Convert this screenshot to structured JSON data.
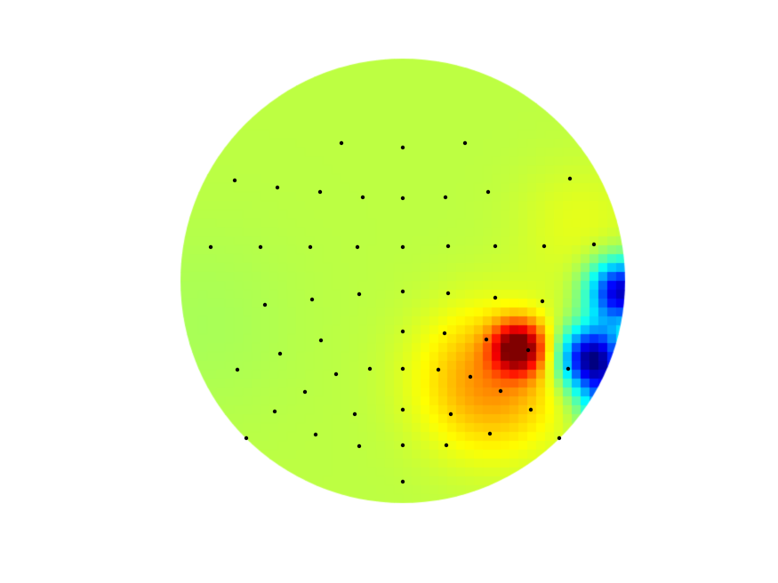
{
  "chart_data": {
    "type": "heatmap",
    "colormap": "jet",
    "head_outline": "circle",
    "background_level": 0.56,
    "electrodes": [
      [
        -0.276,
        -0.62
      ],
      [
        0.0,
        -0.6
      ],
      [
        0.28,
        -0.62
      ],
      [
        -0.756,
        -0.452
      ],
      [
        -0.564,
        -0.42
      ],
      [
        -0.372,
        -0.4
      ],
      [
        -0.18,
        -0.376
      ],
      [
        0.0,
        -0.372
      ],
      [
        0.192,
        -0.376
      ],
      [
        0.384,
        -0.4
      ],
      [
        0.752,
        -0.46
      ],
      [
        -0.864,
        -0.152
      ],
      [
        -0.64,
        -0.152
      ],
      [
        -0.416,
        -0.152
      ],
      [
        -0.204,
        -0.152
      ],
      [
        0.0,
        -0.152
      ],
      [
        0.204,
        -0.156
      ],
      [
        0.416,
        -0.156
      ],
      [
        0.636,
        -0.156
      ],
      [
        0.86,
        -0.164
      ],
      [
        -0.62,
        0.108
      ],
      [
        -0.408,
        0.084
      ],
      [
        -0.196,
        0.06
      ],
      [
        0.0,
        0.048
      ],
      [
        0.204,
        0.056
      ],
      [
        0.416,
        0.076
      ],
      [
        0.628,
        0.092
      ],
      [
        -0.368,
        0.268
      ],
      [
        0.0,
        0.228
      ],
      [
        0.188,
        0.236
      ],
      [
        0.376,
        0.264
      ],
      [
        -0.552,
        0.328
      ],
      [
        0.564,
        0.312
      ],
      [
        -0.744,
        0.4
      ],
      [
        -0.3,
        0.42
      ],
      [
        -0.148,
        0.396
      ],
      [
        0.0,
        0.396
      ],
      [
        0.16,
        0.4
      ],
      [
        0.304,
        0.432
      ],
      [
        0.744,
        0.396
      ],
      [
        -0.44,
        0.5
      ],
      [
        0.44,
        0.496
      ],
      [
        -0.576,
        0.588
      ],
      [
        -0.216,
        0.6
      ],
      [
        0.0,
        0.58
      ],
      [
        0.216,
        0.6
      ],
      [
        0.576,
        0.58
      ],
      [
        -0.392,
        0.692
      ],
      [
        0.392,
        0.688
      ],
      [
        -0.704,
        0.708
      ],
      [
        -0.196,
        0.744
      ],
      [
        0.0,
        0.74
      ],
      [
        0.196,
        0.74
      ],
      [
        0.704,
        0.708
      ],
      [
        0.0,
        0.904
      ]
    ],
    "sources": [
      {
        "x": 0.52,
        "y": 0.3,
        "amplitude": 0.42,
        "spread": 0.08
      },
      {
        "x": 0.4,
        "y": 0.45,
        "amplitude": 0.18,
        "spread": 0.22
      },
      {
        "x": 0.85,
        "y": 0.35,
        "amplitude": -0.56,
        "spread": 0.1
      },
      {
        "x": 0.98,
        "y": 0.05,
        "amplitude": -0.5,
        "spread": 0.1
      },
      {
        "x": 0.95,
        "y": 0.55,
        "amplitude": -0.3,
        "spread": 0.1
      },
      {
        "x": 0.8,
        "y": -0.25,
        "amplitude": 0.04,
        "spread": 0.2
      },
      {
        "x": -0.9,
        "y": 0.2,
        "amplitude": -0.02,
        "spread": 0.3
      }
    ]
  }
}
